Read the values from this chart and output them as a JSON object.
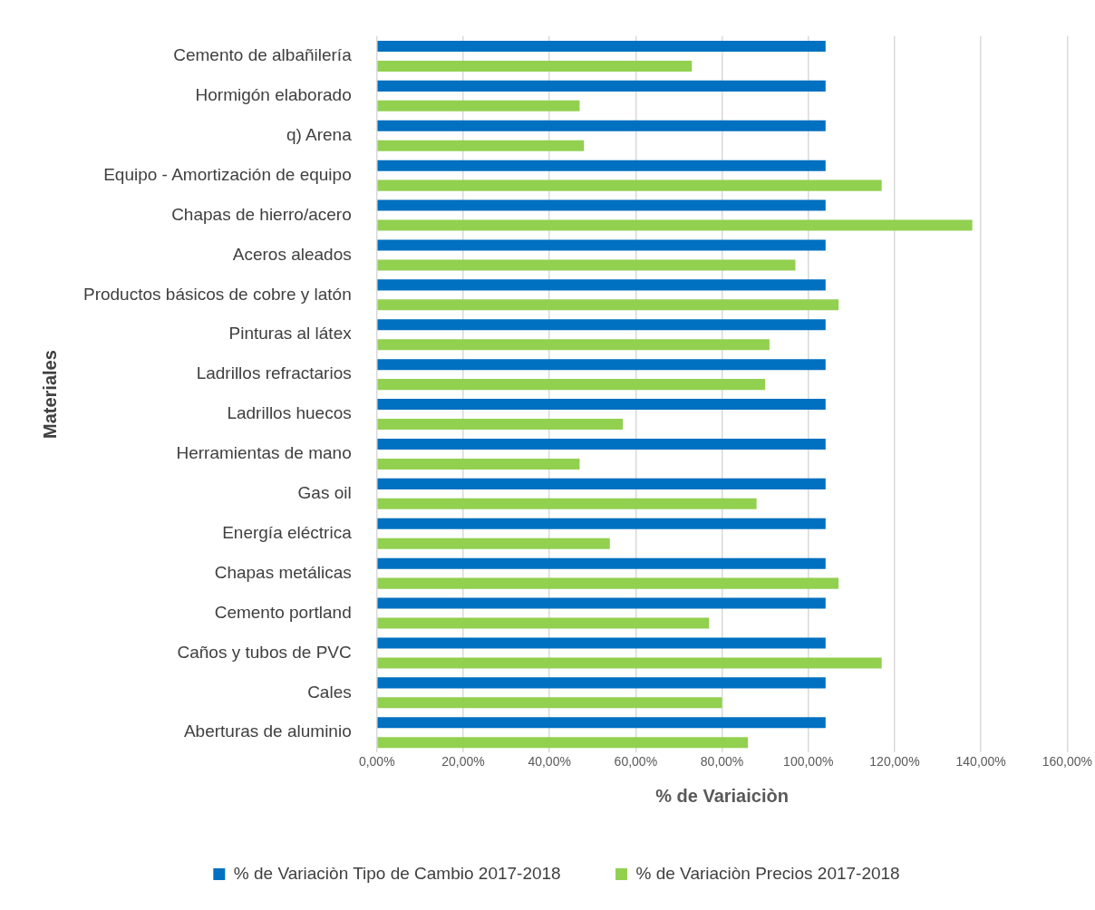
{
  "chart_data": {
    "type": "bar",
    "orientation": "horizontal",
    "xlabel": "% de Variaiciòn",
    "ylabel": "Materiales",
    "categories": [
      "Cemento de albañilería",
      "Hormigón elaborado",
      "q) Arena",
      "Equipo - Amortización de equipo",
      "Chapas de hierro/acero",
      "Aceros aleados",
      "Productos básicos de cobre y latón",
      "Pinturas al látex",
      "Ladrillos refractarios",
      "Ladrillos huecos",
      "Herramientas de mano",
      "Gas oil",
      "Energía eléctrica",
      "Chapas metálicas",
      "Cemento portland",
      "Caños y tubos de PVC",
      "Cales",
      "Aberturas de aluminio"
    ],
    "series": [
      {
        "name": "% de Variaciòn Tipo de Cambio 2017-2018",
        "color": "#0070c0",
        "values": [
          104,
          104,
          104,
          104,
          104,
          104,
          104,
          104,
          104,
          104,
          104,
          104,
          104,
          104,
          104,
          104,
          104,
          104
        ]
      },
      {
        "name": "% de Variaciòn Precios 2017-2018",
        "color": "#92d050",
        "values": [
          73,
          47,
          48,
          117,
          138,
          97,
          107,
          91,
          90,
          57,
          47,
          88,
          54,
          107,
          77,
          117,
          80,
          86
        ]
      }
    ],
    "xlim": [
      0,
      160
    ],
    "xticks": [
      {
        "value": 0,
        "label": "0,00%"
      },
      {
        "value": 20,
        "label": "20,00%"
      },
      {
        "value": 40,
        "label": "40,00%"
      },
      {
        "value": 60,
        "label": "60,00%"
      },
      {
        "value": 80,
        "label": "80,00%"
      },
      {
        "value": 100,
        "label": "100,00%"
      },
      {
        "value": 120,
        "label": "120,00%"
      },
      {
        "value": 140,
        "label": "140,00%"
      },
      {
        "value": 160,
        "label": "160,00%"
      }
    ],
    "grid": "x",
    "legend": "bottom"
  }
}
